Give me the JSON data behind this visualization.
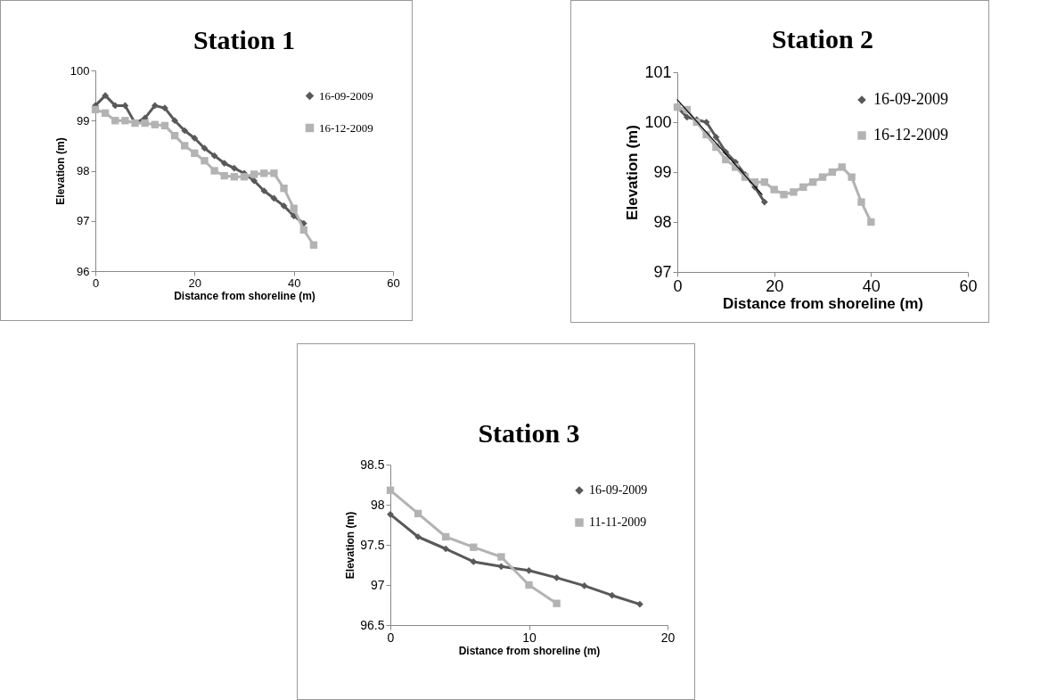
{
  "chart_data": [
    {
      "type": "line",
      "title": "Station 1",
      "xlabel": "Distance from shoreline (m)",
      "ylabel": "Elevation (m)",
      "xlim": [
        0,
        60
      ],
      "xticks": [
        0,
        20,
        40,
        60
      ],
      "ylim": [
        96,
        100
      ],
      "yticks": [
        96,
        97,
        98,
        99,
        100
      ],
      "grid": false,
      "legend": "top right",
      "series": [
        {
          "name": "16-09-2009",
          "color": "#595959",
          "marker": "diamond",
          "x": [
            0,
            2,
            4,
            6,
            8,
            10,
            12,
            14,
            16,
            18,
            20,
            22,
            24,
            26,
            28,
            30,
            32,
            34,
            36,
            38,
            40,
            42
          ],
          "values": [
            99.3,
            99.5,
            99.3,
            99.3,
            98.95,
            99.05,
            99.3,
            99.25,
            99.0,
            98.8,
            98.65,
            98.45,
            98.3,
            98.15,
            98.05,
            97.95,
            97.8,
            97.6,
            97.45,
            97.3,
            97.1,
            96.95
          ]
        },
        {
          "name": "16-12-2009",
          "color": "#b3b3b3",
          "marker": "square",
          "x": [
            0,
            2,
            4,
            6,
            8,
            10,
            12,
            14,
            16,
            18,
            20,
            22,
            24,
            26,
            28,
            30,
            32,
            34,
            36,
            38,
            40,
            42,
            44
          ],
          "values": [
            99.22,
            99.15,
            99.0,
            99.0,
            98.95,
            98.95,
            98.92,
            98.9,
            98.7,
            98.5,
            98.35,
            98.2,
            98.0,
            97.9,
            97.88,
            97.88,
            97.93,
            97.95,
            97.95,
            97.65,
            97.25,
            96.82,
            96.52
          ]
        }
      ]
    },
    {
      "type": "line",
      "title": "Station 2",
      "xlabel": "Distance from shoreline (m)",
      "ylabel": "Elevation (m)",
      "xlim": [
        0,
        60
      ],
      "xticks": [
        0,
        20,
        40,
        60
      ],
      "ylim": [
        97,
        101
      ],
      "yticks": [
        97,
        98,
        99,
        100,
        101
      ],
      "grid": false,
      "legend": "top right",
      "series": [
        {
          "name": "16-09-2009",
          "color": "#595959",
          "marker": "diamond",
          "x": [
            0,
            2,
            4,
            6,
            8,
            10,
            12,
            14,
            16,
            18
          ],
          "values": [
            100.3,
            100.1,
            100.05,
            100.0,
            99.7,
            99.4,
            99.2,
            98.95,
            98.7,
            98.4
          ]
        },
        {
          "name": "16-12-2009",
          "color": "#b3b3b3",
          "marker": "square",
          "x": [
            0,
            2,
            4,
            6,
            8,
            10,
            12,
            14,
            16,
            18,
            20,
            22,
            24,
            26,
            28,
            30,
            32,
            34,
            36,
            38,
            40
          ],
          "values": [
            100.3,
            100.25,
            100.0,
            99.75,
            99.5,
            99.25,
            99.1,
            98.9,
            98.8,
            98.8,
            98.65,
            98.55,
            98.6,
            98.7,
            98.8,
            98.9,
            99.0,
            99.1,
            98.9,
            98.4,
            98.0
          ]
        },
        {
          "color": "#000000",
          "marker": "none",
          "x": [
            0,
            17.5
          ],
          "values": [
            100.45,
            98.55
          ]
        }
      ]
    },
    {
      "type": "line",
      "title": "Station 3",
      "xlabel": "Distance from shoreline (m)",
      "ylabel": "Elevation (m)",
      "xlim": [
        0,
        20
      ],
      "xticks": [
        0,
        10,
        20
      ],
      "ylim": [
        96.5,
        98.5
      ],
      "yticks": [
        96.5,
        97,
        97.5,
        98,
        98.5
      ],
      "grid": false,
      "legend": "top right",
      "series": [
        {
          "name": "16-09-2009",
          "color": "#595959",
          "marker": "diamond",
          "x": [
            0,
            2,
            4,
            6,
            8,
            10,
            12,
            14,
            16,
            18
          ],
          "values": [
            97.88,
            97.6,
            97.45,
            97.29,
            97.23,
            97.18,
            97.09,
            96.99,
            96.87,
            96.76
          ]
        },
        {
          "name": "11-11-2009",
          "color": "#b3b3b3",
          "marker": "square",
          "x": [
            0,
            2,
            4,
            6,
            8,
            10,
            12
          ],
          "values": [
            98.18,
            97.89,
            97.6,
            97.47,
            97.35,
            97.0,
            96.77
          ]
        }
      ]
    }
  ]
}
